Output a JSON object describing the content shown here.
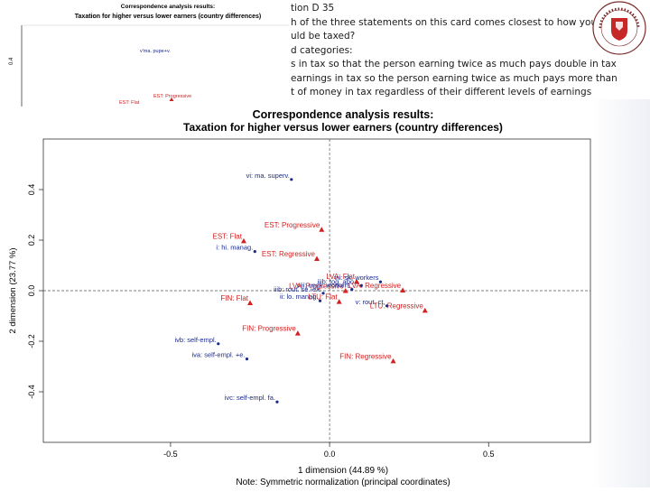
{
  "slide": {
    "lines": [
      "tion D 35",
      "h of the three statements on this card comes closest to how you think",
      "uld be taxed?",
      "d categories:",
      "s in tax so that the person earning twice as much pays double in tax",
      "earnings in tax so the person earning twice as much pays more than",
      "t of money in tax regardless of their different levels of earnings"
    ]
  },
  "thumbnail": {
    "title_line1": "Correspondence analysis results:",
    "title_line2": "Taxation for higher versus lower earners (country differences)",
    "tick": "0.4",
    "label_a": "v'ma. pupe+v.",
    "label_b": "EST: Progressive",
    "label_c": "EST: Flat"
  },
  "colors": {
    "country": "#d42020",
    "occupation": "#1a2a8c",
    "axis": "#333333",
    "thumb_marker": "#cc2222"
  },
  "chart_data": {
    "type": "scatter",
    "title": "Correspondence analysis results:",
    "subtitle": "Taxation for higher versus lower earners (country differences)",
    "xlabel": "1 dimension (44.89 %)",
    "ylabel": "2 dimension (23.77 %)",
    "note": "Note: Symmetric normalization (principal coordinates)",
    "xlim": [
      -0.9,
      0.82
    ],
    "ylim": [
      -0.6,
      0.6
    ],
    "xticks": [
      -0.5,
      0.0,
      0.5
    ],
    "yticks": [
      -0.4,
      -0.2,
      0.0,
      0.2,
      0.4
    ],
    "xtick_labels": [
      "-0.5",
      "0.0",
      "0.5"
    ],
    "ytick_labels": [
      "-0.4",
      "-0.2",
      "0.0",
      "0.2",
      "0.4"
    ],
    "series": [
      {
        "group": "country",
        "points": [
          {
            "label": "EST: Progressive",
            "x": -0.025,
            "y": 0.24
          },
          {
            "label": "EST: Flat",
            "x": -0.27,
            "y": 0.195
          },
          {
            "label": "EST: Regressive",
            "x": -0.04,
            "y": 0.125
          },
          {
            "label": "LVA: Flat",
            "x": 0.085,
            "y": 0.035
          },
          {
            "label": "LVA: Progressive",
            "x": 0.05,
            "y": -0.002
          },
          {
            "label": "LVA: Regressive",
            "x": 0.23,
            "y": 0.0
          },
          {
            "label": "FIN: Flat",
            "x": -0.25,
            "y": -0.05
          },
          {
            "label": "LTU: Flat",
            "x": 0.03,
            "y": -0.045
          },
          {
            "label": "LTU: Regressive",
            "x": 0.3,
            "y": -0.08
          },
          {
            "label": "FIN: Progressive",
            "x": -0.1,
            "y": -0.17
          },
          {
            "label": "FIN: Regressive",
            "x": 0.2,
            "y": -0.28
          }
        ]
      },
      {
        "group": "occupation",
        "points": [
          {
            "label": "vi: ma. superv.",
            "x": -0.12,
            "y": 0.44
          },
          {
            "label": "i: hi. manag.",
            "x": -0.235,
            "y": 0.155
          },
          {
            "label": "vii: sk. workers",
            "x": 0.16,
            "y": 0.035
          },
          {
            "label": "iiib: tog. abo...",
            "x": 0.1,
            "y": 0.02
          },
          {
            "label": "viii: unsk. workers",
            "x": 0.07,
            "y": 0.005
          },
          {
            "label": "iiib: rout. se.-ex.",
            "x": -0.02,
            "y": -0.01
          },
          {
            "label": "ii: lo. manag.",
            "x": -0.03,
            "y": -0.04
          },
          {
            "label": "v: rout. ct.",
            "x": 0.18,
            "y": -0.06
          },
          {
            "label": "ivb: self-empl.",
            "x": -0.35,
            "y": -0.21
          },
          {
            "label": "iva: self-empl. +e.",
            "x": -0.26,
            "y": -0.27
          },
          {
            "label": "ivc: self-empl. fa.",
            "x": -0.165,
            "y": -0.44
          }
        ]
      }
    ]
  }
}
